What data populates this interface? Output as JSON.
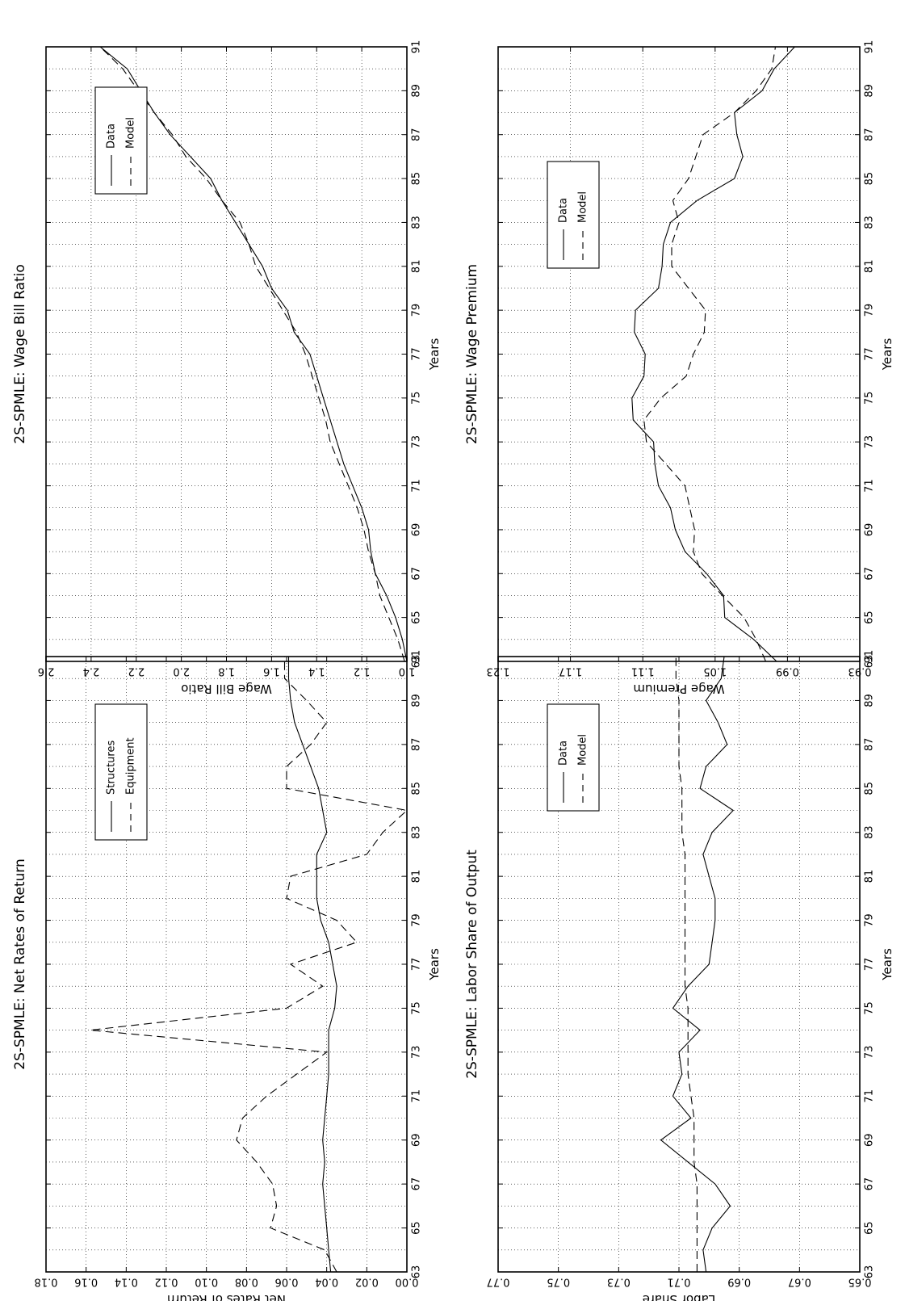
{
  "chart_data": [
    {
      "type": "line",
      "title": "2S-SPMLE: Net Rates of Return",
      "xlabel": "Years",
      "ylabel": "Net Rates of Return",
      "xlim": [
        63,
        91
      ],
      "ylim": [
        0.0,
        0.18
      ],
      "xticks": [
        "63",
        "65",
        "67",
        "69",
        "71",
        "73",
        "75",
        "77",
        "79",
        "81",
        "83",
        "85",
        "87",
        "89",
        "91"
      ],
      "yticks": [
        "0.00",
        "0.02",
        "0.04",
        "0.06",
        "0.08",
        "0.10",
        "0.12",
        "0.14",
        "0.16",
        "0.18"
      ],
      "grid": true,
      "legend": "top-left",
      "x": [
        63,
        64,
        65,
        66,
        67,
        68,
        69,
        70,
        71,
        72,
        73,
        74,
        75,
        76,
        77,
        78,
        79,
        80,
        81,
        82,
        83,
        84,
        85,
        86,
        87,
        88,
        89,
        90,
        91
      ],
      "series": [
        {
          "name": "Structures",
          "style": "solid",
          "values": [
            0.038,
            0.039,
            0.04,
            0.041,
            0.042,
            0.041,
            0.042,
            0.041,
            0.04,
            0.039,
            0.039,
            0.039,
            0.036,
            0.035,
            0.037,
            0.039,
            0.043,
            0.045,
            0.045,
            0.045,
            0.04,
            0.042,
            0.044,
            0.048,
            0.052,
            0.056,
            0.058,
            0.059,
            0.059
          ]
        },
        {
          "name": "Equipment",
          "style": "dashed",
          "values": [
            0.035,
            0.041,
            0.068,
            0.065,
            0.067,
            0.075,
            0.085,
            0.082,
            0.07,
            0.055,
            0.04,
            0.158,
            0.06,
            0.042,
            0.058,
            0.025,
            0.035,
            0.06,
            0.058,
            0.02,
            0.012,
            0.0,
            0.06,
            0.06,
            0.048,
            0.04,
            0.05,
            0.061,
            0.061
          ]
        }
      ]
    },
    {
      "type": "line",
      "title": "2S-SPMLE: Wage Bill Ratio",
      "xlabel": "Years",
      "ylabel": "Wage Bill Ratio",
      "xlim": [
        63,
        91
      ],
      "ylim": [
        1.0,
        2.6
      ],
      "xticks": [
        "63",
        "65",
        "67",
        "69",
        "71",
        "73",
        "75",
        "77",
        "79",
        "81",
        "83",
        "85",
        "87",
        "89",
        "91"
      ],
      "yticks": [
        "1.0",
        "1.2",
        "1.4",
        "1.6",
        "1.8",
        "2.0",
        "2.2",
        "2.4",
        "2.6"
      ],
      "grid": true,
      "legend": "top-left",
      "x": [
        63,
        64,
        65,
        66,
        67,
        68,
        69,
        70,
        71,
        72,
        73,
        74,
        75,
        76,
        77,
        78,
        79,
        80,
        81,
        82,
        83,
        84,
        85,
        86,
        87,
        88,
        89,
        90,
        91
      ],
      "series": [
        {
          "name": "Data",
          "style": "solid",
          "values": [
            1.0,
            1.02,
            1.05,
            1.09,
            1.14,
            1.16,
            1.17,
            1.2,
            1.24,
            1.28,
            1.31,
            1.34,
            1.37,
            1.4,
            1.43,
            1.5,
            1.53,
            1.6,
            1.64,
            1.7,
            1.76,
            1.82,
            1.87,
            1.96,
            2.05,
            2.12,
            2.18,
            2.24,
            2.36
          ]
        },
        {
          "name": "Model",
          "style": "dashed",
          "values": [
            1.01,
            1.04,
            1.08,
            1.12,
            1.14,
            1.17,
            1.19,
            1.22,
            1.26,
            1.3,
            1.34,
            1.36,
            1.39,
            1.42,
            1.45,
            1.49,
            1.55,
            1.61,
            1.67,
            1.7,
            1.74,
            1.82,
            1.89,
            1.98,
            2.04,
            2.12,
            2.19,
            2.26,
            2.36
          ]
        }
      ]
    },
    {
      "type": "line",
      "title": "2S-SPMLE: Labor Share of Output",
      "xlabel": "Years",
      "ylabel": "Labor Share",
      "xlim": [
        63,
        91
      ],
      "ylim": [
        0.65,
        0.77
      ],
      "xticks": [
        "63",
        "65",
        "67",
        "69",
        "71",
        "73",
        "75",
        "77",
        "79",
        "81",
        "83",
        "85",
        "87",
        "89",
        "91"
      ],
      "yticks": [
        "0.65",
        "0.67",
        "0.69",
        "0.71",
        "0.73",
        "0.75",
        "0.77"
      ],
      "grid": true,
      "legend": "top-left",
      "x": [
        63,
        64,
        65,
        66,
        67,
        68,
        69,
        70,
        71,
        72,
        73,
        74,
        75,
        76,
        77,
        78,
        79,
        80,
        81,
        82,
        83,
        84,
        85,
        86,
        87,
        88,
        89,
        90,
        91
      ],
      "series": [
        {
          "name": "Data",
          "style": "solid",
          "values": [
            0.701,
            0.702,
            0.699,
            0.693,
            0.698,
            0.707,
            0.716,
            0.706,
            0.712,
            0.709,
            0.71,
            0.703,
            0.712,
            0.707,
            0.7,
            0.699,
            0.698,
            0.698,
            0.7,
            0.702,
            0.699,
            0.692,
            0.703,
            0.701,
            0.694,
            0.697,
            0.701,
            0.696,
            0.695
          ]
        },
        {
          "name": "Model",
          "style": "dashed",
          "values": [
            0.704,
            0.704,
            0.704,
            0.704,
            0.704,
            0.705,
            0.705,
            0.705,
            0.706,
            0.707,
            0.707,
            0.707,
            0.707,
            0.708,
            0.708,
            0.708,
            0.708,
            0.708,
            0.708,
            0.708,
            0.709,
            0.709,
            0.709,
            0.71,
            0.71,
            0.71,
            0.71,
            0.711,
            0.711
          ]
        }
      ]
    },
    {
      "type": "line",
      "title": "2S-SPMLE: Wage Premium",
      "xlabel": "Years",
      "ylabel": "Wage Premium",
      "xlim": [
        63,
        91
      ],
      "ylim": [
        0.93,
        1.23
      ],
      "xticks": [
        "63",
        "65",
        "67",
        "69",
        "71",
        "73",
        "75",
        "77",
        "79",
        "81",
        "83",
        "85",
        "87",
        "89",
        "91"
      ],
      "yticks": [
        "0.93",
        "0.99",
        "1.05",
        "1.11",
        "1.17",
        "1.23"
      ],
      "grid": true,
      "legend": "top-left",
      "x": [
        63,
        64,
        65,
        66,
        67,
        68,
        69,
        70,
        71,
        72,
        73,
        74,
        75,
        76,
        77,
        78,
        79,
        80,
        81,
        82,
        83,
        84,
        85,
        86,
        87,
        88,
        89,
        90,
        91
      ],
      "series": [
        {
          "name": "Data",
          "style": "solid",
          "values": [
            0.999,
            1.018,
            1.042,
            1.043,
            1.057,
            1.075,
            1.083,
            1.087,
            1.097,
            1.1,
            1.101,
            1.118,
            1.119,
            1.109,
            1.108,
            1.117,
            1.116,
            1.097,
            1.094,
            1.093,
            1.087,
            1.065,
            1.034,
            1.027,
            1.032,
            1.034,
            1.011,
            1.001,
            0.984
          ]
        },
        {
          "name": "Model",
          "style": "dashed",
          "values": [
            1.008,
            1.016,
            1.026,
            1.044,
            1.061,
            1.068,
            1.067,
            1.071,
            1.075,
            1.091,
            1.107,
            1.109,
            1.095,
            1.074,
            1.068,
            1.059,
            1.058,
            1.072,
            1.086,
            1.086,
            1.08,
            1.085,
            1.072,
            1.066,
            1.06,
            1.034,
            1.016,
            1.003,
            1.0
          ]
        }
      ]
    }
  ]
}
